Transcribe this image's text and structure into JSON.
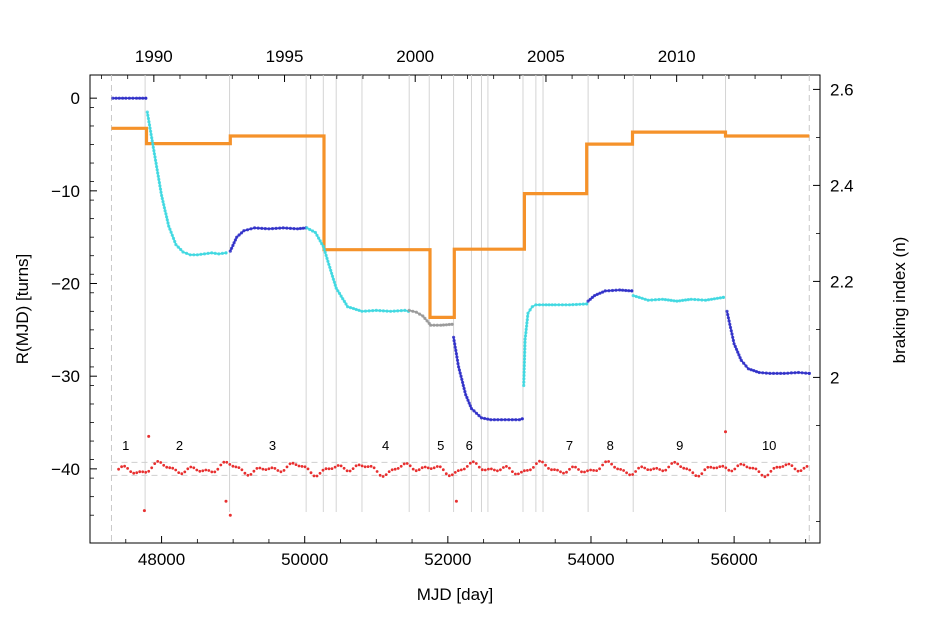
{
  "chart_data": {
    "type": "line",
    "xlabel": "MJD [day]",
    "ylabel_left": "R(MJD) [turns]",
    "ylabel_right": "braking index (n)",
    "xlim": [
      47000,
      57200
    ],
    "ylim_left": [
      -48,
      2.5
    ],
    "ylim_right": [
      1.655,
      2.63
    ],
    "x_ticks": [
      48000,
      50000,
      52000,
      54000,
      56000
    ],
    "x_tick_labels": [
      "48000",
      "50000",
      "52000",
      "54000",
      "56000"
    ],
    "y_left_ticks": [
      0,
      -10,
      -20,
      -30,
      -40
    ],
    "y_left_tick_labels": [
      "0",
      "−10",
      "−20",
      "−30",
      "−40"
    ],
    "y_right_ticks": [
      2.0,
      2.2,
      2.4,
      2.6
    ],
    "y_right_tick_labels": [
      "2",
      "2.2",
      "2.4",
      "2.6"
    ],
    "top_axis": {
      "label_mjd": [
        47892,
        49718,
        51544,
        53371,
        55197
      ],
      "labels": [
        "1990",
        "1995",
        "2000",
        "2005",
        "2010"
      ]
    },
    "glitch_epochs": [
      47770,
      48950,
      50020,
      50260,
      50440,
      50800,
      51460,
      51740,
      52080,
      52330,
      52470,
      52560,
      53050,
      53230,
      53330,
      53960,
      54590,
      55880
    ],
    "dashed_bounds": [
      47300,
      57050
    ],
    "segments": [
      {
        "label": "1",
        "mjd": 47500
      },
      {
        "label": "2",
        "mjd": 48250
      },
      {
        "label": "3",
        "mjd": 49550
      },
      {
        "label": "4",
        "mjd": 51130
      },
      {
        "label": "5",
        "mjd": 51900
      },
      {
        "label": "6",
        "mjd": 52300
      },
      {
        "label": "7",
        "mjd": 53700
      },
      {
        "label": "8",
        "mjd": 54270
      },
      {
        "label": "9",
        "mjd": 55240
      },
      {
        "label": "10",
        "mjd": 56490
      }
    ],
    "braking_index_steps": {
      "name": "",
      "color": "#f5922a",
      "x": [
        47300,
        47790,
        47790,
        48960,
        48960,
        50270,
        50270,
        51750,
        51750,
        52090,
        52090,
        53070,
        53070,
        53940,
        53940,
        54580,
        54580,
        55880,
        55880,
        57050
      ],
      "y": [
        2.519,
        2.519,
        2.487,
        2.487,
        2.503,
        2.503,
        2.266,
        2.266,
        2.125,
        2.125,
        2.267,
        2.267,
        2.383,
        2.383,
        2.486,
        2.486,
        2.511,
        2.511,
        2.503,
        2.503
      ]
    },
    "residual_series": [
      {
        "name": "",
        "color": "#3030c8",
        "x": [
          47320,
          47500,
          47650,
          47780
        ],
        "y": [
          0.0,
          0.0,
          0.0,
          0.0
        ]
      },
      {
        "name": "",
        "color": "#40d8e0",
        "x": [
          47800,
          47900,
          48000,
          48100,
          48200,
          48300,
          48400,
          48500,
          48600,
          48700,
          48800,
          48900
        ],
        "y": [
          -1.5,
          -6.0,
          -10.5,
          -13.8,
          -15.8,
          -16.6,
          -16.9,
          -16.9,
          -16.8,
          -16.7,
          -16.8,
          -16.7
        ]
      },
      {
        "name": "",
        "color": "#3030c8",
        "x": [
          48960,
          49050,
          49150,
          49300,
          49500,
          49700,
          49900,
          50020
        ],
        "y": [
          -16.5,
          -15.0,
          -14.3,
          -14.0,
          -14.1,
          -14.0,
          -14.1,
          -14.0
        ]
      },
      {
        "name": "",
        "color": "#40d8e0",
        "x": [
          50030,
          50150,
          50260,
          50440,
          50600,
          50800,
          51000,
          51200,
          51400,
          51450
        ],
        "y": [
          -14.0,
          -14.5,
          -16.0,
          -20.5,
          -22.5,
          -23.0,
          -22.9,
          -23.0,
          -22.9,
          -23.0
        ]
      },
      {
        "name": "",
        "color": "#999999",
        "x": [
          51460,
          51560,
          51650,
          51740,
          51760,
          51900,
          52060
        ],
        "y": [
          -22.9,
          -23.1,
          -23.5,
          -24.3,
          -24.5,
          -24.5,
          -24.4
        ]
      },
      {
        "name": "",
        "color": "#3030c8",
        "x": [
          52080,
          52150,
          52250,
          52330,
          52470,
          52600,
          52800,
          53000,
          53040
        ],
        "y": [
          -25.8,
          -29.0,
          -32.0,
          -33.5,
          -34.5,
          -34.7,
          -34.7,
          -34.7,
          -34.6
        ]
      },
      {
        "name": "",
        "color": "#40d8e0",
        "x": [
          53060,
          53080,
          53120,
          53180,
          53230,
          53330,
          53500,
          53700,
          53940
        ],
        "y": [
          -31.0,
          -26.0,
          -23.2,
          -22.5,
          -22.3,
          -22.3,
          -22.3,
          -22.3,
          -22.2
        ]
      },
      {
        "name": "",
        "color": "#3030c8",
        "x": [
          53960,
          54050,
          54200,
          54400,
          54570
        ],
        "y": [
          -21.9,
          -21.3,
          -20.8,
          -20.7,
          -20.8
        ]
      },
      {
        "name": "",
        "color": "#40d8e0",
        "x": [
          54590,
          54800,
          55000,
          55200,
          55400,
          55600,
          55850
        ],
        "y": [
          -21.3,
          -21.8,
          -21.7,
          -21.9,
          -21.7,
          -21.8,
          -21.5
        ]
      },
      {
        "name": "",
        "color": "#3030c8",
        "x": [
          55900,
          56000,
          56100,
          56200,
          56350,
          56500,
          56700,
          56900,
          57050
        ],
        "y": [
          -23.0,
          -26.5,
          -28.3,
          -29.2,
          -29.6,
          -29.7,
          -29.7,
          -29.6,
          -29.7
        ]
      }
    ],
    "timing_noise": {
      "name": "",
      "color": "#e83030",
      "baseline": -40.0,
      "band": [
        -39.3,
        -40.7
      ],
      "outliers": [
        {
          "x": 47820,
          "y": -36.5
        },
        {
          "x": 47760,
          "y": -44.5
        },
        {
          "x": 48900,
          "y": -43.5
        },
        {
          "x": 48960,
          "y": -45.0
        },
        {
          "x": 52120,
          "y": -43.5
        },
        {
          "x": 55880,
          "y": -36.0
        }
      ]
    }
  }
}
